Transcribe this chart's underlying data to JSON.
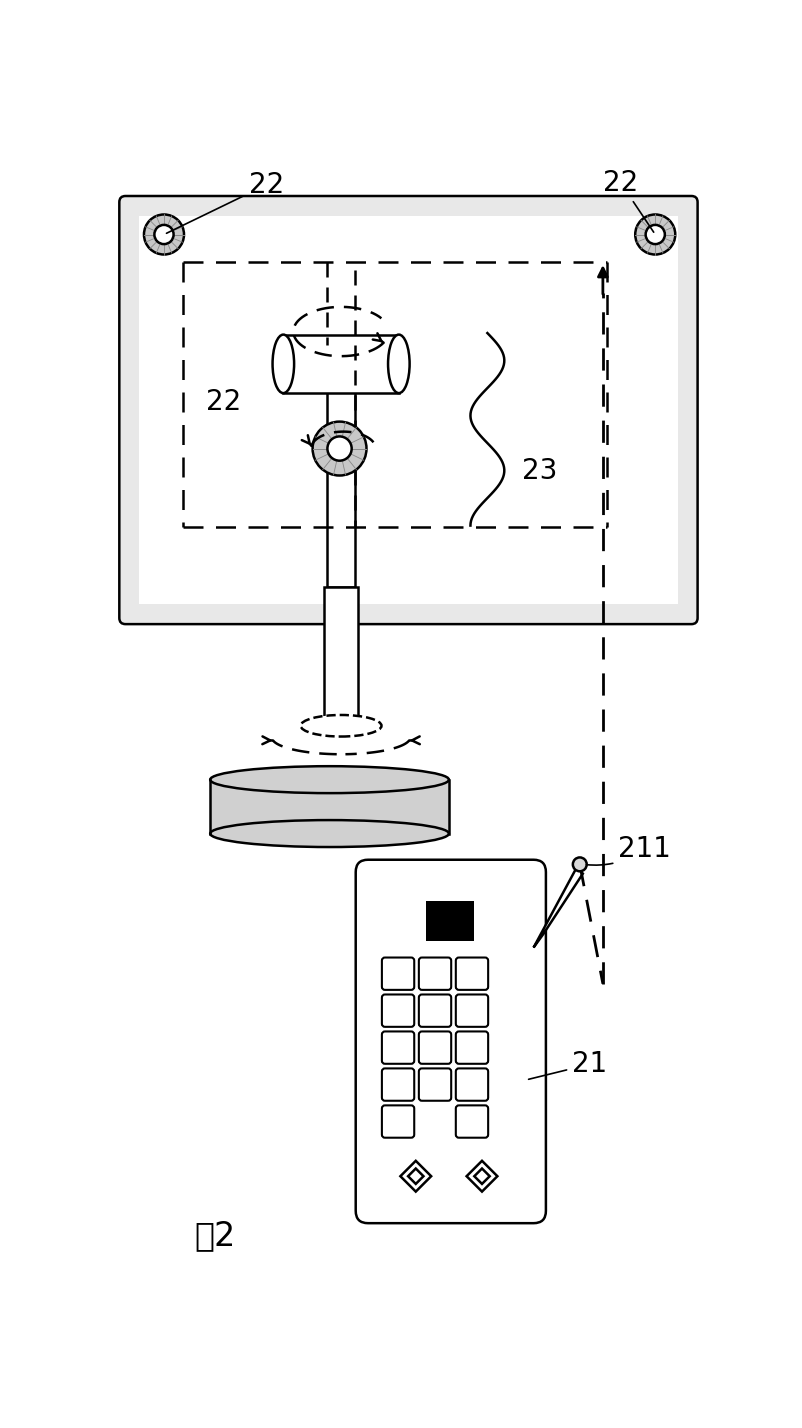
{
  "bg_color": "#ffffff",
  "label_22_top_left": "22",
  "label_22_top_right": "22",
  "label_22_inner": "22",
  "label_23": "23",
  "label_21": "21",
  "label_211": "211",
  "fig_label": "图2"
}
